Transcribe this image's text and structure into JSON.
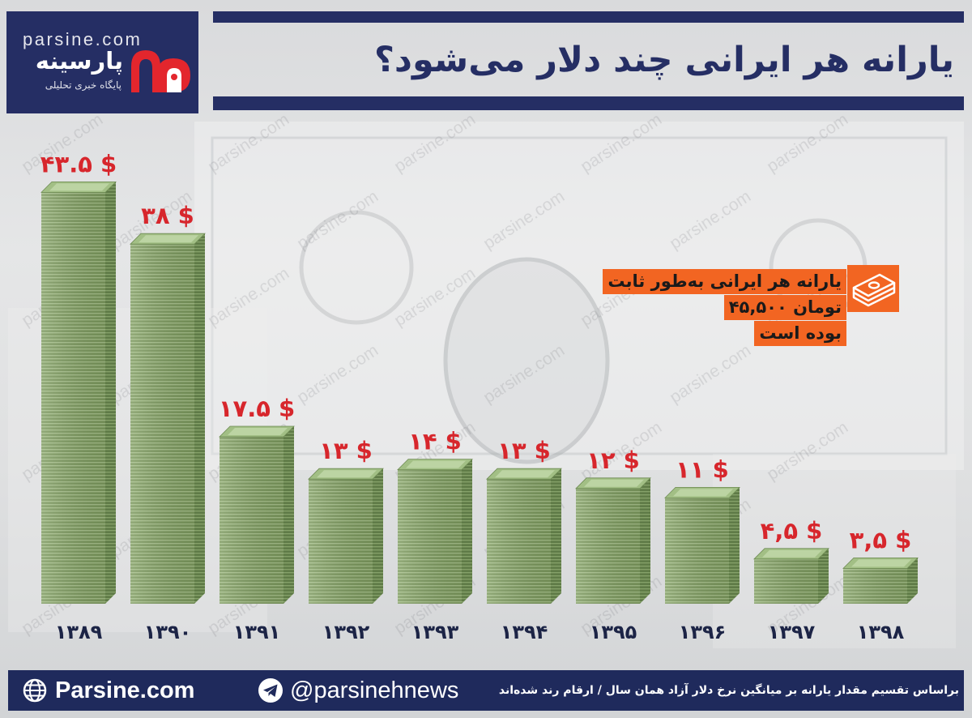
{
  "header": {
    "logo_site": "parsine.com",
    "logo_name": "پارسینه",
    "logo_tagline": "پایگاه خبری تحلیلی",
    "logo_icon": "parsine-logo-mark"
  },
  "watermark": "parsine.com",
  "annotation": {
    "lines": [
      "یارانه هر ایرانی به‌طور ثابت",
      "۴۵,۵۰۰ تومان",
      "بوده است"
    ],
    "icon": "money-stack-icon"
  },
  "chart_data": {
    "type": "bar",
    "title": "یارانه هر ایرانی چند دلار می‌شود؟",
    "xlabel": "",
    "ylabel": "",
    "categories": [
      "۱۳۸۹",
      "۱۳۹۰",
      "۱۳۹۱",
      "۱۳۹۲",
      "۱۳۹۳",
      "۱۳۹۴",
      "۱۳۹۵",
      "۱۳۹۶",
      "۱۳۹۷",
      "۱۳۹۸"
    ],
    "values": [
      43.5,
      38,
      17.5,
      13,
      14,
      13,
      12,
      11,
      4.5,
      3.5
    ],
    "data_labels": [
      "۴۳.۵ $",
      "۳۸ $",
      "۱۷.۵ $",
      "۱۳ $",
      "۱۴ $",
      "۱۳ $",
      "۱۲ $",
      "۱۱ $",
      "۴,۵ $",
      "۳,۵ $"
    ],
    "bar_style": "money-stack",
    "grid": false,
    "legend": "none"
  },
  "footer": {
    "website_icon": "globe-icon",
    "website": "Parsine.com",
    "telegram_icon": "telegram-icon",
    "telegram": "@parsinehnews",
    "note": "براساس تقسیم مقدار یارانه بر میانگین نرخ دلار آزاد همان سال / ارقام رند شده‌اند"
  },
  "colors": {
    "navy": "#252e64",
    "footer_navy": "#1f2a5c",
    "label_red": "#d7262c",
    "logo_red": "#e3262d",
    "annotation_orange": "#f26522",
    "money_green": "#7b985d",
    "year_label": "#1c2446"
  }
}
